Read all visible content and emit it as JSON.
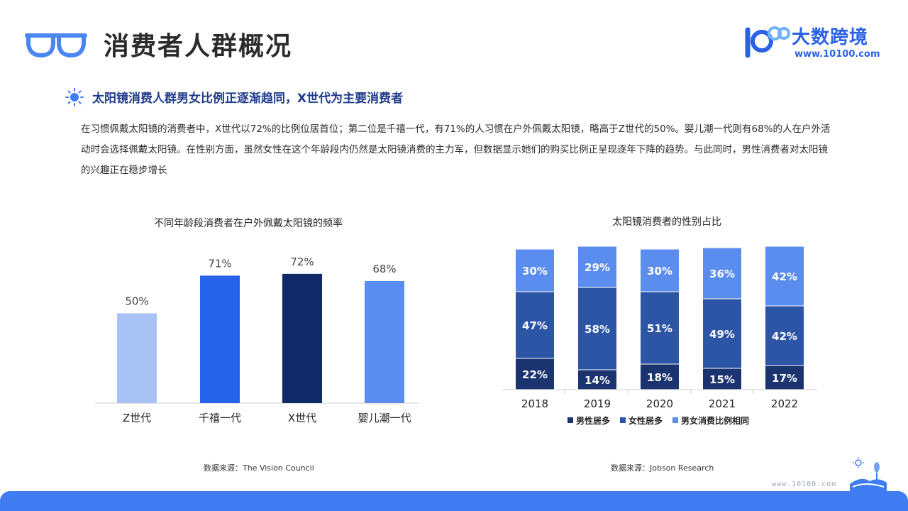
{
  "header": {
    "title": "消费者人群概况",
    "logo_name": "大数跨境",
    "logo_url": "www.10100.com"
  },
  "section": {
    "subtitle": "太阳镜消费人群男女比例正逐渐趋同，X世代为主要消费者",
    "paragraph": "在习惯佩戴太阳镜的消费者中，X世代以72%的比例位居首位；第二位是千禧一代，有71%的人习惯在户外佩戴太阳镜，略高于Z世代的50%。婴儿潮一代则有68%的人在户外活动时会选择佩戴太阳镜。在性别方面，虽然女性在这个年龄段内仍然是太阳镜消费的主力军，但数据显示她们的购买比例正呈现逐年下降的趋势。与此同时，男性消费者对太阳镜的兴趣正在稳步增长"
  },
  "footer": {
    "url": "www.10100.com"
  },
  "chart_data": [
    {
      "type": "bar",
      "title": "不同年龄段消费者在户外佩戴太阳镜的频率",
      "categories": [
        "Z世代",
        "千禧一代",
        "X世代",
        "婴儿潮一代"
      ],
      "values": [
        50,
        71,
        72,
        68
      ],
      "value_labels": [
        "50%",
        "71%",
        "72%",
        "68%"
      ],
      "colors": [
        "#a9c2f6",
        "#2563eb",
        "#0f2a66",
        "#5b8df0"
      ],
      "ylim": [
        0,
        100
      ],
      "grid": false,
      "source": "数据来源：The Vision Council"
    },
    {
      "type": "bar",
      "stacked": true,
      "title": "太阳镜消费者的性别占比",
      "categories": [
        "2018",
        "2019",
        "2020",
        "2021",
        "2022"
      ],
      "series": [
        {
          "name": "男性居多",
          "values": [
            22,
            14,
            18,
            15,
            17
          ],
          "labels": [
            "22%",
            "14%",
            "18%",
            "15%",
            "17%"
          ],
          "color": "#1b3470"
        },
        {
          "name": "女性居多",
          "values": [
            47,
            58,
            51,
            49,
            42
          ],
          "labels": [
            "47%",
            "58%",
            "51%",
            "49%",
            "42%"
          ],
          "color": "#2d55a6"
        },
        {
          "name": "男女消费比例相同",
          "values": [
            30,
            29,
            30,
            36,
            42
          ],
          "labels": [
            "30%",
            "29%",
            "30%",
            "36%",
            "42%"
          ],
          "color": "#5b8def"
        }
      ],
      "legend": "bottom",
      "grid": false,
      "source": "数据来源：Jobson Research"
    }
  ]
}
